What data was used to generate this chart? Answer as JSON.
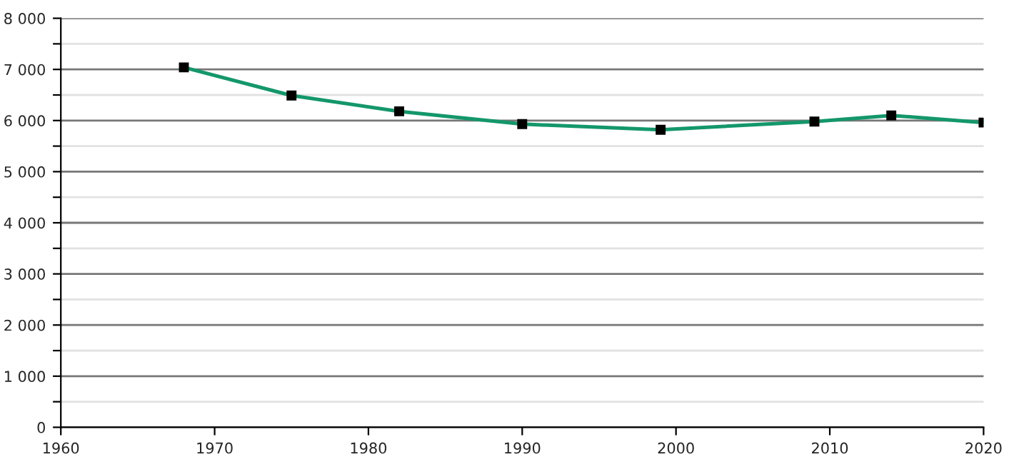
{
  "chart_data": {
    "type": "line",
    "x": [
      1968,
      1975,
      1982,
      1990,
      1999,
      2009,
      2014,
      2020
    ],
    "series": [
      {
        "color": "#13976b",
        "values": [
          7040,
          6490,
          6180,
          5930,
          5820,
          5980,
          6100,
          5960
        ]
      }
    ],
    "xlim": [
      1960,
      2020
    ],
    "xticks": [
      1960,
      1970,
      1980,
      1990,
      2000,
      2010,
      2020
    ],
    "ylim": [
      0,
      8000
    ],
    "yticks": [
      {
        "value": 0,
        "label": "0"
      },
      {
        "value": 500,
        "label": null
      },
      {
        "value": 1000,
        "label": "1 000"
      },
      {
        "value": 1500,
        "label": null
      },
      {
        "value": 2000,
        "label": "2 000"
      },
      {
        "value": 2500,
        "label": null
      },
      {
        "value": 3000,
        "label": "3 000"
      },
      {
        "value": 3500,
        "label": null
      },
      {
        "value": 4000,
        "label": "4 000"
      },
      {
        "value": 4500,
        "label": null
      },
      {
        "value": 5000,
        "label": "5 000"
      },
      {
        "value": 5500,
        "label": null
      },
      {
        "value": 6000,
        "label": "6 000"
      },
      {
        "value": 6500,
        "label": null
      },
      {
        "value": 7000,
        "label": "7 000"
      },
      {
        "value": 7500,
        "label": null
      },
      {
        "value": 8000,
        "label": "8 000"
      }
    ],
    "grid": "y",
    "marker": "square",
    "line_style": "solid"
  }
}
